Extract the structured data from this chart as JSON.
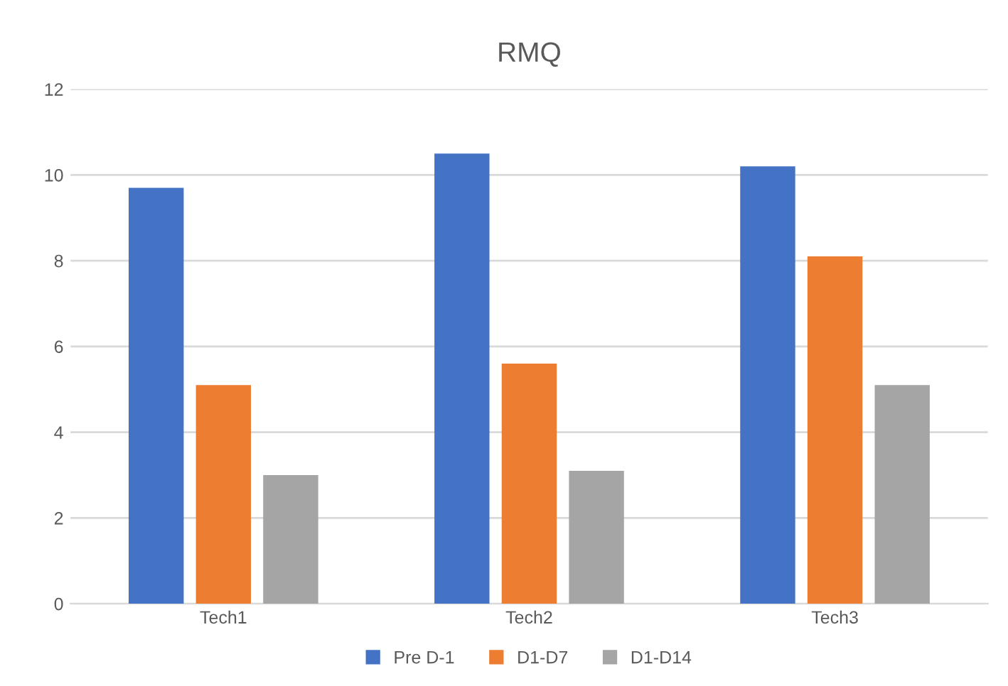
{
  "chart_data": {
    "type": "bar",
    "title": "RMQ",
    "categories": [
      "Tech1",
      "Tech2",
      "Tech3"
    ],
    "series": [
      {
        "name": "Pre D-1",
        "color": "#4472c4",
        "values": [
          9.7,
          10.5,
          10.2
        ]
      },
      {
        "name": "D1-D7",
        "color": "#ed7d31",
        "values": [
          5.1,
          5.6,
          8.1
        ]
      },
      {
        "name": "D1-D14",
        "color": "#a5a5a5",
        "values": [
          3.0,
          3.1,
          5.1
        ]
      }
    ],
    "ylim": [
      0,
      12
    ],
    "yticks": [
      0,
      2,
      4,
      6,
      8,
      10,
      12
    ],
    "grid": "y",
    "legend": "bottom"
  }
}
